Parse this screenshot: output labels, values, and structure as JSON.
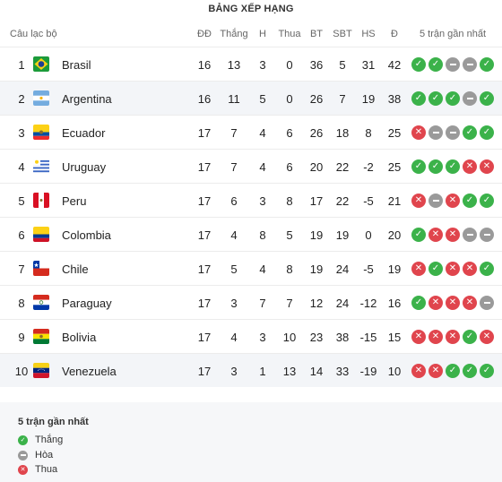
{
  "title": "BẢNG XẾP HẠNG",
  "headers": {
    "club": "Câu lạc bộ",
    "played": "ĐĐ",
    "won": "Thắng",
    "drawn": "H",
    "lost": "Thua",
    "gf": "BT",
    "ga": "SBT",
    "gd": "HS",
    "pts": "Đ",
    "form": "5 trận gần nhất"
  },
  "rows": [
    {
      "rank": "1",
      "team": "Brasil",
      "flag": "brazil",
      "played": "16",
      "won": "13",
      "drawn": "3",
      "lost": "0",
      "gf": "36",
      "ga": "5",
      "gd": "31",
      "pts": "42",
      "form": [
        "W",
        "W",
        "D",
        "D",
        "W"
      ]
    },
    {
      "rank": "2",
      "team": "Argentina",
      "flag": "argentina",
      "played": "16",
      "won": "11",
      "drawn": "5",
      "lost": "0",
      "gf": "26",
      "ga": "7",
      "gd": "19",
      "pts": "38",
      "form": [
        "W",
        "W",
        "W",
        "D",
        "W"
      ]
    },
    {
      "rank": "3",
      "team": "Ecuador",
      "flag": "ecuador",
      "played": "17",
      "won": "7",
      "drawn": "4",
      "lost": "6",
      "gf": "26",
      "ga": "18",
      "gd": "8",
      "pts": "25",
      "form": [
        "L",
        "D",
        "D",
        "W",
        "W"
      ]
    },
    {
      "rank": "4",
      "team": "Uruguay",
      "flag": "uruguay",
      "played": "17",
      "won": "7",
      "drawn": "4",
      "lost": "6",
      "gf": "20",
      "ga": "22",
      "gd": "-2",
      "pts": "25",
      "form": [
        "W",
        "W",
        "W",
        "L",
        "L"
      ]
    },
    {
      "rank": "5",
      "team": "Peru",
      "flag": "peru",
      "played": "17",
      "won": "6",
      "drawn": "3",
      "lost": "8",
      "gf": "17",
      "ga": "22",
      "gd": "-5",
      "pts": "21",
      "form": [
        "L",
        "D",
        "L",
        "W",
        "W"
      ]
    },
    {
      "rank": "6",
      "team": "Colombia",
      "flag": "colombia",
      "played": "17",
      "won": "4",
      "drawn": "8",
      "lost": "5",
      "gf": "19",
      "ga": "19",
      "gd": "0",
      "pts": "20",
      "form": [
        "W",
        "L",
        "L",
        "D",
        "D"
      ]
    },
    {
      "rank": "7",
      "team": "Chile",
      "flag": "chile",
      "played": "17",
      "won": "5",
      "drawn": "4",
      "lost": "8",
      "gf": "19",
      "ga": "24",
      "gd": "-5",
      "pts": "19",
      "form": [
        "L",
        "W",
        "L",
        "L",
        "W"
      ]
    },
    {
      "rank": "8",
      "team": "Paraguay",
      "flag": "paraguay",
      "played": "17",
      "won": "3",
      "drawn": "7",
      "lost": "7",
      "gf": "12",
      "ga": "24",
      "gd": "-12",
      "pts": "16",
      "form": [
        "W",
        "L",
        "L",
        "L",
        "D"
      ]
    },
    {
      "rank": "9",
      "team": "Bolivia",
      "flag": "bolivia",
      "played": "17",
      "won": "4",
      "drawn": "3",
      "lost": "10",
      "gf": "23",
      "ga": "38",
      "gd": "-15",
      "pts": "15",
      "form": [
        "L",
        "L",
        "L",
        "W",
        "L"
      ]
    },
    {
      "rank": "10",
      "team": "Venezuela",
      "flag": "venezuela",
      "played": "17",
      "won": "3",
      "drawn": "1",
      "lost": "13",
      "gf": "14",
      "ga": "33",
      "gd": "-19",
      "pts": "10",
      "form": [
        "L",
        "L",
        "W",
        "W",
        "W"
      ]
    }
  ],
  "legend": {
    "title": "5 trận gần nhất",
    "win": "Thắng",
    "draw": "Hòa",
    "loss": "Thua"
  },
  "colors": {
    "win": "#3bb24a",
    "draw": "#9a9a9a",
    "loss": "#e0454d"
  }
}
